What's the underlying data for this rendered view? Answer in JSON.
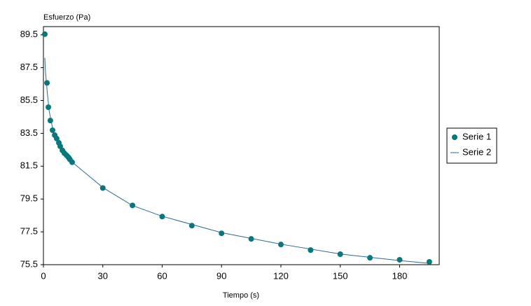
{
  "chart_data": {
    "type": "scatter",
    "y_label": "Esfuerzo (Pa)",
    "x_label": "Tiempo (s)",
    "xlim": [
      0,
      200
    ],
    "xticks": [
      0,
      30,
      60,
      90,
      120,
      150,
      180
    ],
    "ylim": [
      75.5,
      90
    ],
    "yticks": [
      75.5,
      77.5,
      79.5,
      81.5,
      83.5,
      85.5,
      87.5,
      89.5
    ],
    "legend": "right",
    "series": [
      {
        "name": "Serie 1",
        "color": "#007a7a",
        "mode": "markers",
        "x": [
          0.7,
          1.8,
          2.5,
          3.5,
          4.6,
          5.7,
          6.7,
          7.8,
          8.5,
          9.6,
          10.6,
          11.7,
          12.7,
          13.4,
          14.5,
          30,
          45,
          60,
          75,
          90,
          105,
          120,
          135,
          150,
          165,
          180,
          195
        ],
        "values": [
          89.54,
          86.57,
          85.09,
          84.28,
          83.69,
          83.39,
          83.18,
          82.92,
          82.71,
          82.46,
          82.29,
          82.16,
          82.03,
          81.91,
          81.74,
          80.17,
          79.11,
          78.43,
          77.88,
          77.41,
          77.07,
          76.73,
          76.39,
          76.14,
          75.92,
          75.8,
          75.67
        ]
      },
      {
        "name": "Serie 2",
        "color": "#2a6a8f",
        "mode": "line",
        "x": [
          0.7,
          1,
          2,
          3,
          5,
          8,
          12,
          15,
          30,
          45,
          60,
          90,
          120,
          150,
          180,
          195
        ],
        "values": [
          88.1,
          87.3,
          85.9,
          84.8,
          83.6,
          82.8,
          82.1,
          81.7,
          80.2,
          79.1,
          78.45,
          77.45,
          76.75,
          76.15,
          75.75,
          75.58
        ]
      }
    ]
  }
}
